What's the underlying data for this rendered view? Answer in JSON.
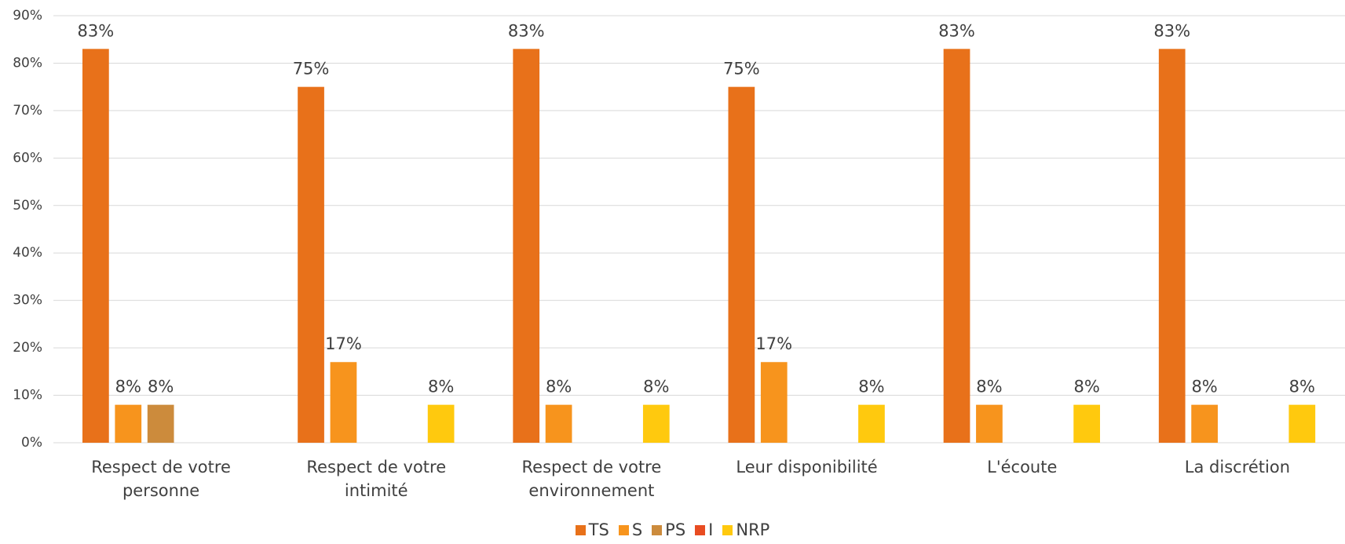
{
  "chart_data": {
    "type": "bar",
    "categories": [
      "Respect de votre personne",
      "Respect de votre intimité",
      "Respect de votre environnement",
      "Leur disponibilité",
      "L'écoute",
      "La discrétion"
    ],
    "series": [
      {
        "name": "TS",
        "color": "#e8711a",
        "values": [
          83,
          75,
          83,
          75,
          83,
          83
        ],
        "value_labels": [
          "83%",
          "75%",
          "83%",
          "75%",
          "83%",
          "83%"
        ]
      },
      {
        "name": "S",
        "color": "#f7941d",
        "values": [
          8,
          17,
          8,
          17,
          8,
          8
        ],
        "value_labels": [
          "8%",
          "17%",
          "8%",
          "17%",
          "8%",
          "8%"
        ]
      },
      {
        "name": "PS",
        "color": "#cc8b3c",
        "values": [
          8,
          null,
          null,
          null,
          null,
          null
        ],
        "value_labels": [
          "8%",
          null,
          null,
          null,
          null,
          null
        ]
      },
      {
        "name": "I",
        "color": "#e84c22",
        "values": [
          null,
          null,
          null,
          null,
          null,
          null
        ],
        "value_labels": [
          null,
          null,
          null,
          null,
          null,
          null
        ]
      },
      {
        "name": "NRP",
        "color": "#ffc90e",
        "values": [
          null,
          8,
          8,
          8,
          8,
          8
        ],
        "value_labels": [
          null,
          "8%",
          "8%",
          "8%",
          "8%",
          "8%"
        ]
      }
    ],
    "ylim": [
      0,
      90
    ],
    "yticks": [
      {
        "value": 0,
        "label": "0%"
      },
      {
        "value": 10,
        "label": "10%"
      },
      {
        "value": 20,
        "label": "20%"
      },
      {
        "value": 30,
        "label": "30%"
      },
      {
        "value": 40,
        "label": "40%"
      },
      {
        "value": 50,
        "label": "50%"
      },
      {
        "value": 60,
        "label": "60%"
      },
      {
        "value": 70,
        "label": "70%"
      },
      {
        "value": 80,
        "label": "80%"
      },
      {
        "value": 90,
        "label": "90%"
      }
    ],
    "grid": true,
    "legend": "bottom"
  }
}
